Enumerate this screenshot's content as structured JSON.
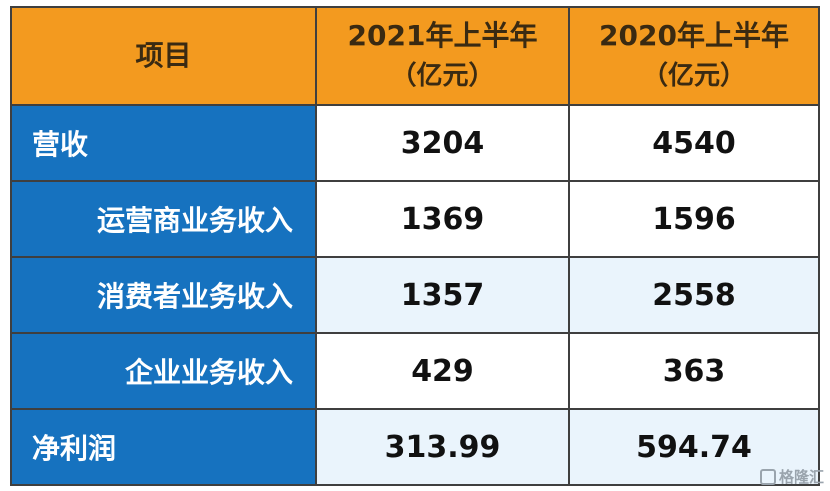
{
  "chart_data": {
    "type": "table",
    "columns": [
      "项目",
      "2021年上半年",
      "2020年上半年"
    ],
    "column_units": [
      "",
      "（亿元）",
      "（亿元）"
    ],
    "rows": [
      {
        "label": "营收",
        "values": [
          "3204",
          "4540"
        ]
      },
      {
        "label": "运营商业务收入",
        "values": [
          "1369",
          "1596"
        ]
      },
      {
        "label": "消费者业务收入",
        "values": [
          "1357",
          "2558"
        ]
      },
      {
        "label": "企业业务收入",
        "values": [
          "429",
          "363"
        ]
      },
      {
        "label": "净利润",
        "values": [
          "313.99",
          "594.74"
        ]
      }
    ]
  },
  "watermark": "格隆汇",
  "colors": {
    "header_bg": "#f39a1f",
    "label_bg": "#1672bf",
    "row_alt_bg": "#eaf4fc"
  }
}
